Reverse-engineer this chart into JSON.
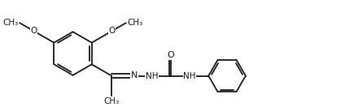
{
  "background_color": "#ffffff",
  "line_color": "#1a1a1a",
  "line_width": 1.3,
  "font_size": 7.5,
  "figsize": [
    4.24,
    1.32
  ],
  "dpi": 100,
  "xlim": [
    0,
    10.6
  ],
  "ylim": [
    0.0,
    3.1
  ],
  "bl": 0.72,
  "r_benz": 0.68,
  "r_phen": 0.58
}
